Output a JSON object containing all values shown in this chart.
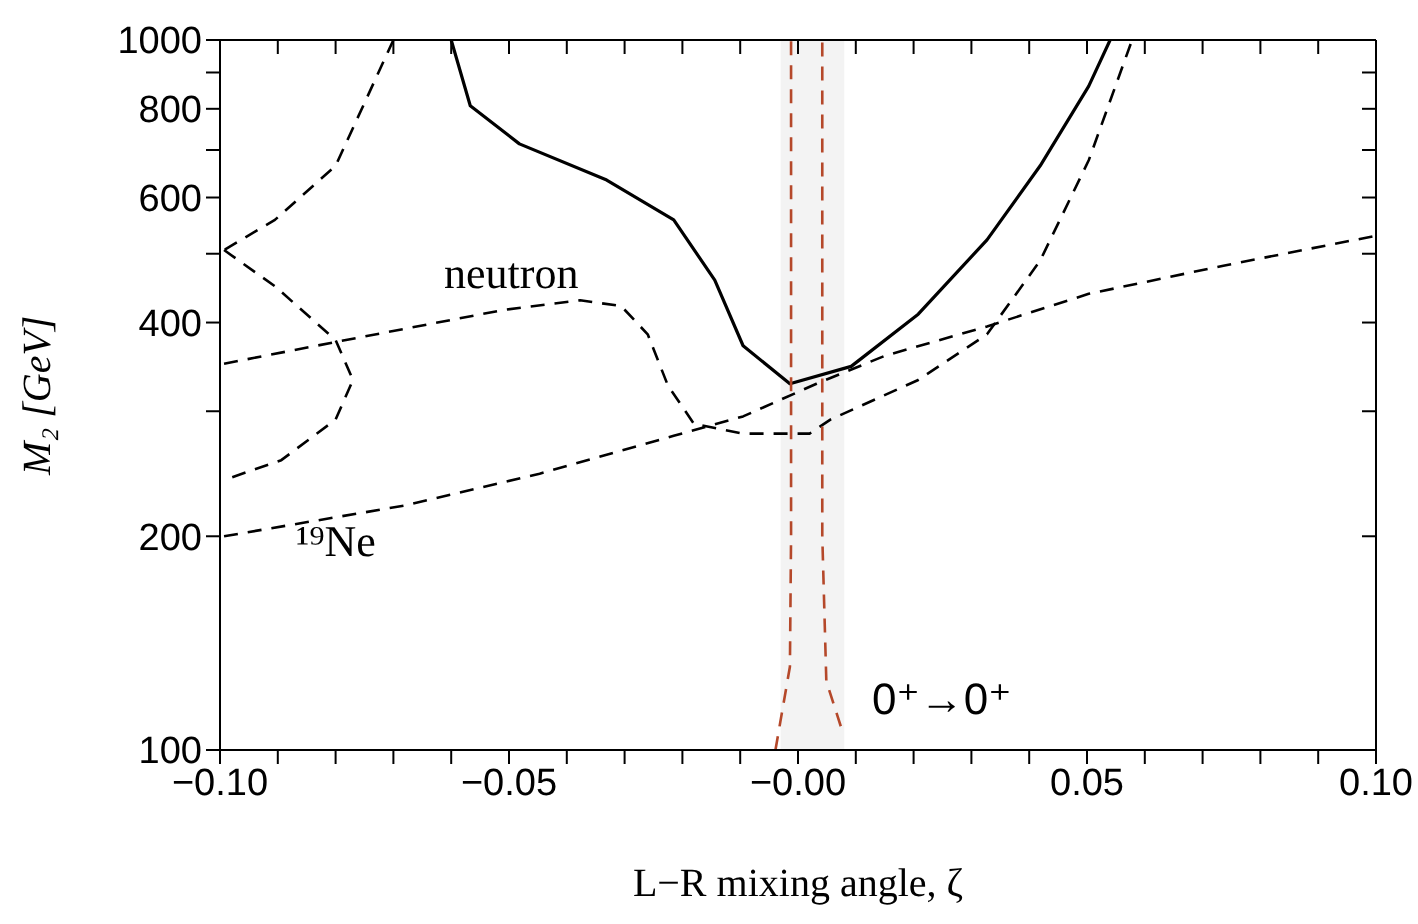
{
  "chart_data": {
    "type": "line",
    "xlabel": "L−R mixing angle, ζ",
    "ylabel": "M₂ [GeV]",
    "log": "y",
    "xlim": [
      -0.1,
      0.1
    ],
    "ylim": [
      100,
      1000
    ],
    "xticks": [
      {
        "value": -0.1,
        "label": "−0.10"
      },
      {
        "value": -0.09,
        "label": null
      },
      {
        "value": -0.08,
        "label": null
      },
      {
        "value": -0.07,
        "label": null
      },
      {
        "value": -0.06,
        "label": null
      },
      {
        "value": -0.05,
        "label": "−0.05"
      },
      {
        "value": -0.04,
        "label": null
      },
      {
        "value": -0.03,
        "label": null
      },
      {
        "value": -0.02,
        "label": null
      },
      {
        "value": -0.01,
        "label": null
      },
      {
        "value": 0,
        "label": "−0.00"
      },
      {
        "value": 0.01,
        "label": null
      },
      {
        "value": 0.02,
        "label": null
      },
      {
        "value": 0.03,
        "label": null
      },
      {
        "value": 0.04,
        "label": null
      },
      {
        "value": 0.05,
        "label": "0.05"
      },
      {
        "value": 0.06,
        "label": null
      },
      {
        "value": 0.07,
        "label": null
      },
      {
        "value": 0.08,
        "label": null
      },
      {
        "value": 0.09,
        "label": null
      },
      {
        "value": 0.1,
        "label": "0.10"
      }
    ],
    "yticks": [
      100,
      200,
      {
        "value": 300,
        "label": null
      },
      400,
      {
        "value": 500,
        "label": null
      },
      600,
      {
        "value": 700,
        "label": null
      },
      800,
      {
        "value": 900,
        "label": null
      },
      1000
    ],
    "marker": "none",
    "bands": [
      {
        "axis": "x",
        "from": -0.003,
        "to": 0.008,
        "color": "#f3f3f3"
      }
    ],
    "annotations": [
      "neutron",
      "¹⁹Ne",
      "0⁺→0⁺"
    ],
    "series": [
      {
        "color": "#000000",
        "line_style": "solid",
        "x": [
          -0.06,
          -0.0567,
          -0.0482,
          -0.0331,
          -0.0215,
          -0.0144,
          -0.0095,
          -0.0014,
          0.0092,
          0.0208,
          0.0327,
          0.0419,
          0.0503,
          0.054
        ],
        "values": [
          1000,
          808,
          714,
          635,
          558,
          459,
          371,
          328,
          347,
          411,
          523,
          665,
          861,
          1000
        ]
      },
      {
        "color": "#000000",
        "line_style": "dashed",
        "x": [
          -0.07,
          -0.08,
          -0.0905,
          -0.0993
        ],
        "values": [
          1000,
          665,
          558,
          506
        ]
      },
      {
        "color": "#000000",
        "line_style": "dashed",
        "x": [
          -0.0993,
          -0.0782,
          -0.0507,
          -0.0377,
          -0.0306,
          -0.026,
          -0.0225,
          -0.018,
          -0.0095,
          0.002,
          0.0056,
          0.0208,
          0.0327,
          0.0419,
          0.0503,
          0.0578
        ],
        "values": [
          350,
          378,
          417,
          430,
          422,
          385,
          326,
          288,
          279,
          279,
          292,
          332,
          385,
          489,
          677,
          1000
        ]
      },
      {
        "color": "#000000",
        "line_style": "dashed",
        "x": [
          -0.0993,
          -0.068,
          -0.0447,
          -0.0215,
          -0.0095,
          0.0032,
          0.015,
          0.0327,
          0.0503,
          0.0736,
          0.1
        ],
        "values": [
          200,
          221,
          245,
          277,
          295,
          328,
          359,
          395,
          439,
          481,
          530
        ]
      },
      {
        "color": "#000000",
        "line_style": "dashed",
        "x": [
          -0.0993,
          -0.0905,
          -0.08,
          -0.077,
          -0.08,
          -0.0894,
          -0.0993
        ],
        "values": [
          506,
          450,
          378,
          332,
          292,
          256,
          240
        ]
      },
      {
        "color": "#b5482a",
        "line_style": "dashed",
        "x": [
          -0.0039,
          -0.0014,
          -0.0012,
          -0.0012
        ],
        "values": [
          100,
          131,
          200,
          1000
        ]
      },
      {
        "color": "#b5482a",
        "line_style": "dashed",
        "x": [
          0.0074,
          0.0049,
          0.0042,
          0.0042
        ],
        "values": [
          108,
          125,
          200,
          1000
        ]
      }
    ]
  }
}
